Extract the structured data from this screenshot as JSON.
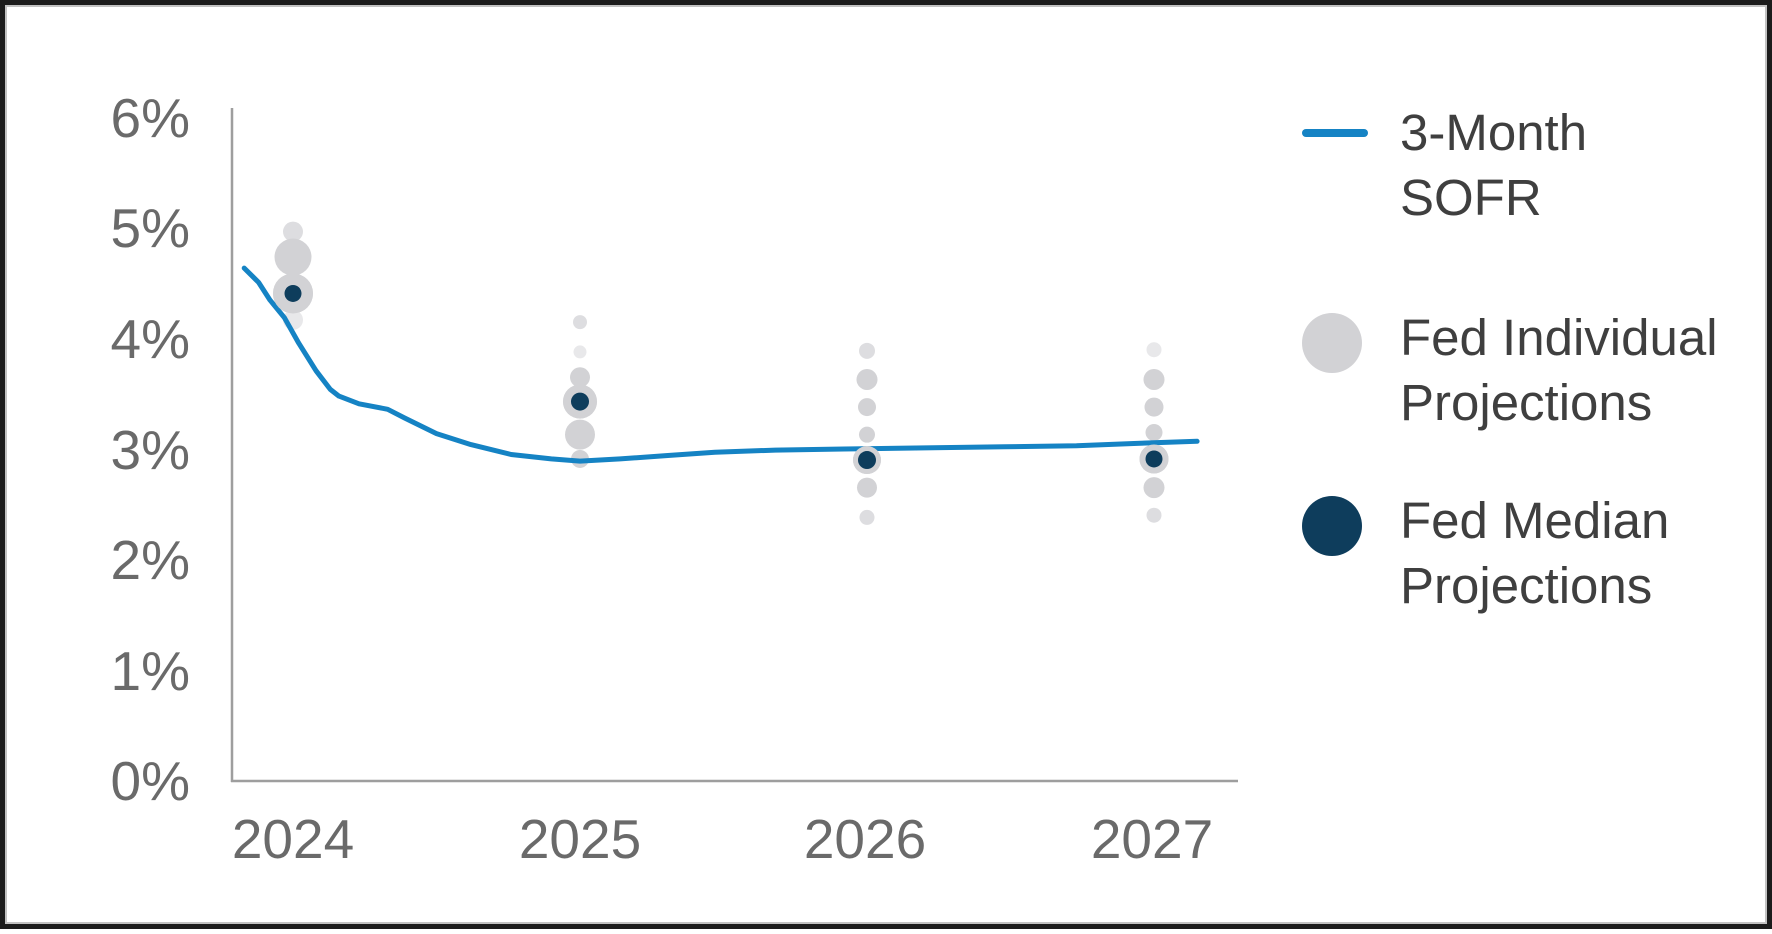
{
  "colors": {
    "sofr_line": "#1583c4",
    "individual_dot": "#d2d2d5",
    "individual_dot_light": "#dddde0",
    "individual_dot_faint": "#e8e8ea",
    "median_dot": "#0e3d5c",
    "axis": "#9e9e9e",
    "tick_text": "#6a6a6a",
    "legend_text": "#3f3f3f"
  },
  "legend": {
    "items": [
      {
        "label": "3-Month SOFR",
        "swatch": "line-swatch",
        "color": "#1583c4"
      },
      {
        "label": "Fed Individual Projections",
        "swatch": "gray-circle-swatch",
        "color": "#d2d2d5"
      },
      {
        "label": "Fed Median Projections",
        "swatch": "navy-circle-swatch",
        "color": "#0e3d5c"
      }
    ]
  },
  "chart_data": {
    "type": "line",
    "title": "",
    "xlabel": "",
    "ylabel": "",
    "x_ticks": [
      "2024",
      "2025",
      "2026",
      "2027"
    ],
    "y_ticks": [
      "6%",
      "5%",
      "4%",
      "3%",
      "2%",
      "1%",
      "0%"
    ],
    "ylim": [
      0,
      6
    ],
    "xlim": [
      2023.79,
      2027.3
    ],
    "grid": false,
    "legend_position": "right",
    "series": [
      {
        "name": "3-Month SOFR",
        "type": "line",
        "color": "#1583c4",
        "points": [
          [
            2023.83,
            4.64
          ],
          [
            2023.88,
            4.51
          ],
          [
            2023.92,
            4.35
          ],
          [
            2023.97,
            4.19
          ],
          [
            2024.02,
            3.96
          ],
          [
            2024.08,
            3.71
          ],
          [
            2024.13,
            3.54
          ],
          [
            2024.16,
            3.48
          ],
          [
            2024.23,
            3.41
          ],
          [
            2024.33,
            3.36
          ],
          [
            2024.39,
            3.28
          ],
          [
            2024.5,
            3.14
          ],
          [
            2024.62,
            3.04
          ],
          [
            2024.76,
            2.95
          ],
          [
            2024.9,
            2.91
          ],
          [
            2025.0,
            2.89
          ],
          [
            2025.14,
            2.91
          ],
          [
            2025.3,
            2.94
          ],
          [
            2025.47,
            2.97
          ],
          [
            2025.68,
            2.99
          ],
          [
            2025.92,
            3.0
          ],
          [
            2026.2,
            3.01
          ],
          [
            2026.48,
            3.02
          ],
          [
            2026.73,
            3.03
          ],
          [
            2026.93,
            3.05
          ],
          [
            2027.15,
            3.07
          ]
        ]
      },
      {
        "name": "Fed Individual Projections",
        "type": "scatter",
        "color": "#d2d2d5",
        "note": "bubble radius reflects number of FOMC participants at that rate",
        "points": [
          {
            "year": 2024,
            "pct": 4.97,
            "r": 10,
            "shade": "light"
          },
          {
            "year": 2024,
            "pct": 4.74,
            "r": 18.5,
            "shade": "normal"
          },
          {
            "year": 2024,
            "pct": 4.41,
            "r": 20,
            "shade": "normal"
          },
          {
            "year": 2024,
            "pct": 4.17,
            "r": 10,
            "shade": "faint"
          },
          {
            "year": 2025,
            "pct": 4.15,
            "r": 7,
            "shade": "light"
          },
          {
            "year": 2025,
            "pct": 3.88,
            "r": 6.5,
            "shade": "faint"
          },
          {
            "year": 2025,
            "pct": 3.65,
            "r": 10,
            "shade": "normal"
          },
          {
            "year": 2025,
            "pct": 3.43,
            "r": 17,
            "shade": "normal"
          },
          {
            "year": 2025,
            "pct": 3.13,
            "r": 15,
            "shade": "normal"
          },
          {
            "year": 2025,
            "pct": 2.91,
            "r": 9,
            "shade": "normal"
          },
          {
            "year": 2026,
            "pct": 3.89,
            "r": 8,
            "shade": "light"
          },
          {
            "year": 2026,
            "pct": 3.63,
            "r": 10.5,
            "shade": "normal"
          },
          {
            "year": 2026,
            "pct": 3.38,
            "r": 9,
            "shade": "normal"
          },
          {
            "year": 2026,
            "pct": 3.13,
            "r": 8,
            "shade": "normal"
          },
          {
            "year": 2026,
            "pct": 2.9,
            "r": 14,
            "shade": "normal"
          },
          {
            "year": 2026,
            "pct": 2.65,
            "r": 10,
            "shade": "normal"
          },
          {
            "year": 2026,
            "pct": 2.38,
            "r": 7.5,
            "shade": "light"
          },
          {
            "year": 2027,
            "pct": 3.9,
            "r": 7.5,
            "shade": "faint"
          },
          {
            "year": 2027,
            "pct": 3.63,
            "r": 10.5,
            "shade": "normal"
          },
          {
            "year": 2027,
            "pct": 3.38,
            "r": 9.5,
            "shade": "normal"
          },
          {
            "year": 2027,
            "pct": 3.15,
            "r": 8.5,
            "shade": "normal"
          },
          {
            "year": 2027,
            "pct": 2.91,
            "r": 14.5,
            "shade": "normal"
          },
          {
            "year": 2027,
            "pct": 2.65,
            "r": 10.5,
            "shade": "normal"
          },
          {
            "year": 2027,
            "pct": 2.4,
            "r": 7.5,
            "shade": "light"
          }
        ]
      },
      {
        "name": "Fed Median Projections",
        "type": "scatter",
        "color": "#0e3d5c",
        "points": [
          {
            "year": 2024,
            "pct": 4.41,
            "r": 8.5
          },
          {
            "year": 2025,
            "pct": 3.43,
            "r": 9
          },
          {
            "year": 2026,
            "pct": 2.9,
            "r": 9
          },
          {
            "year": 2027,
            "pct": 2.91,
            "r": 8.5
          }
        ]
      }
    ]
  }
}
